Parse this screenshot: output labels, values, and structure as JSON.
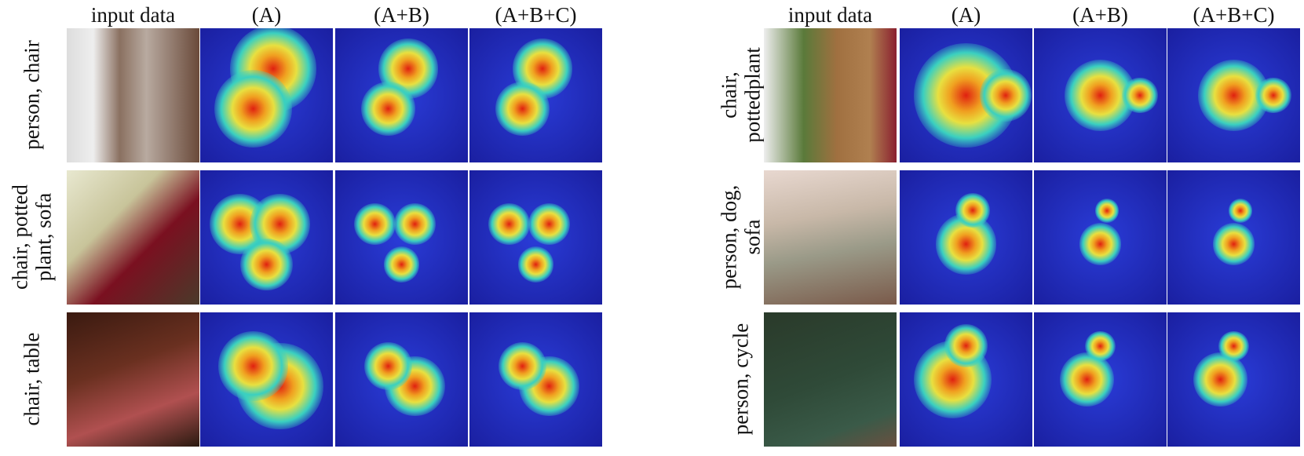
{
  "panels": [
    {
      "headers": [
        "input data",
        "(A)",
        "(A+B)",
        "(A+B+C)"
      ],
      "rows": [
        {
          "label_lines": [
            "person, chair"
          ]
        },
        {
          "label_lines": [
            "chair, potted",
            "plant, sofa"
          ]
        },
        {
          "label_lines": [
            "chair, table"
          ]
        }
      ]
    },
    {
      "headers": [
        "input data",
        "(A)",
        "(A+B)",
        "(A+B+C)"
      ],
      "rows": [
        {
          "label_lines": [
            "chair,",
            "pottedplant"
          ]
        },
        {
          "label_lines": [
            "person, dog,",
            "sofa"
          ]
        },
        {
          "label_lines": [
            "person, cycle"
          ]
        }
      ]
    }
  ],
  "colors": {
    "heat_low": "#1a1fa0",
    "heat_mid": "#3ad0c0",
    "heat_high": "#e02010"
  }
}
